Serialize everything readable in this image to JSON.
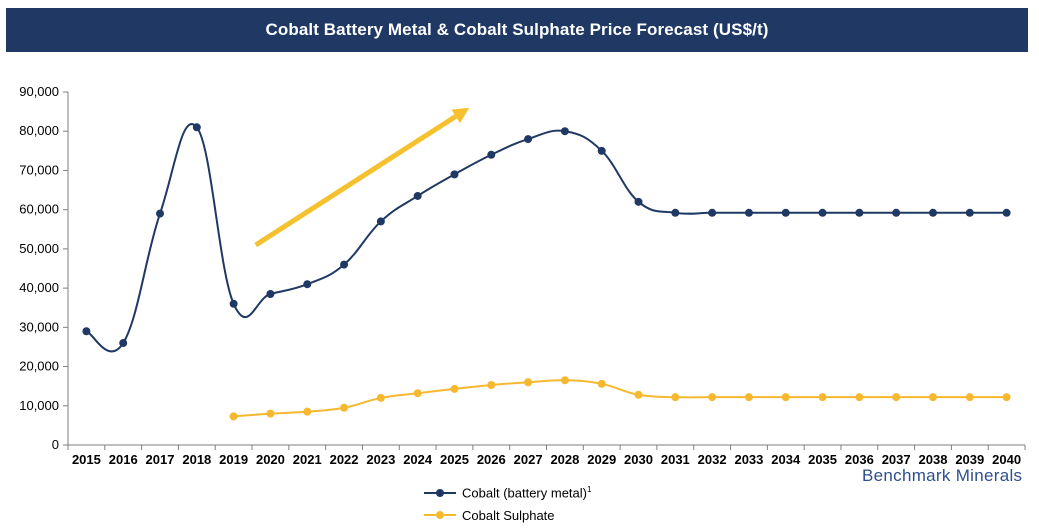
{
  "header": {
    "title": "Cobalt Battery Metal & Cobalt Sulphate Price Forecast (US$/t)"
  },
  "brand": "Benchmark Minerals",
  "colors": {
    "title_bar": "#1f3864",
    "series_metal": "#1f3864",
    "series_sulphate": "#f5b82e",
    "arrow": "#f5c12e",
    "axis": "#7f7f7f"
  },
  "chart_data": {
    "type": "line",
    "title": "Cobalt Battery Metal & Cobalt Sulphate Price Forecast (US$/t)",
    "xlabel": "",
    "ylabel": "",
    "ylim": [
      0,
      90000
    ],
    "yticks": [
      0,
      10000,
      20000,
      30000,
      40000,
      50000,
      60000,
      70000,
      80000,
      90000
    ],
    "ytick_labels": [
      "0",
      "10,000",
      "20,000",
      "30,000",
      "40,000",
      "50,000",
      "60,000",
      "70,000",
      "80,000",
      "90,000"
    ],
    "grid": false,
    "legend_position": "bottom-center",
    "x": [
      "2015",
      "2016",
      "2017",
      "2018",
      "2019",
      "2020",
      "2021",
      "2022",
      "2023",
      "2024",
      "2025",
      "2026",
      "2027",
      "2028",
      "2029",
      "2030",
      "2031",
      "2032",
      "2033",
      "2034",
      "2035",
      "2036",
      "2037",
      "2038",
      "2039",
      "2040"
    ],
    "series": [
      {
        "name": "Cobalt (battery metal)",
        "superscript": "1",
        "color": "#1f3864",
        "values": [
          29000,
          26000,
          59000,
          81000,
          36000,
          38500,
          41000,
          46000,
          57000,
          63500,
          69000,
          74000,
          78000,
          80000,
          75000,
          62000,
          59200,
          59200,
          59200,
          59200,
          59200,
          59200,
          59200,
          59200,
          59200,
          59200
        ]
      },
      {
        "name": "Cobalt Sulphate",
        "color": "#f5b82e",
        "values": [
          null,
          null,
          null,
          null,
          7300,
          8000,
          8500,
          9500,
          12000,
          13200,
          14300,
          15300,
          16000,
          16500,
          15600,
          12800,
          12200,
          12200,
          12200,
          12200,
          12200,
          12200,
          12200,
          12200,
          12200,
          12200
        ]
      }
    ],
    "annotations": [
      {
        "type": "arrow",
        "color": "#f5c12e",
        "from": {
          "x": "2019.6",
          "y": 51000
        },
        "to": {
          "x": "2025.4",
          "y": 86000
        }
      }
    ]
  }
}
